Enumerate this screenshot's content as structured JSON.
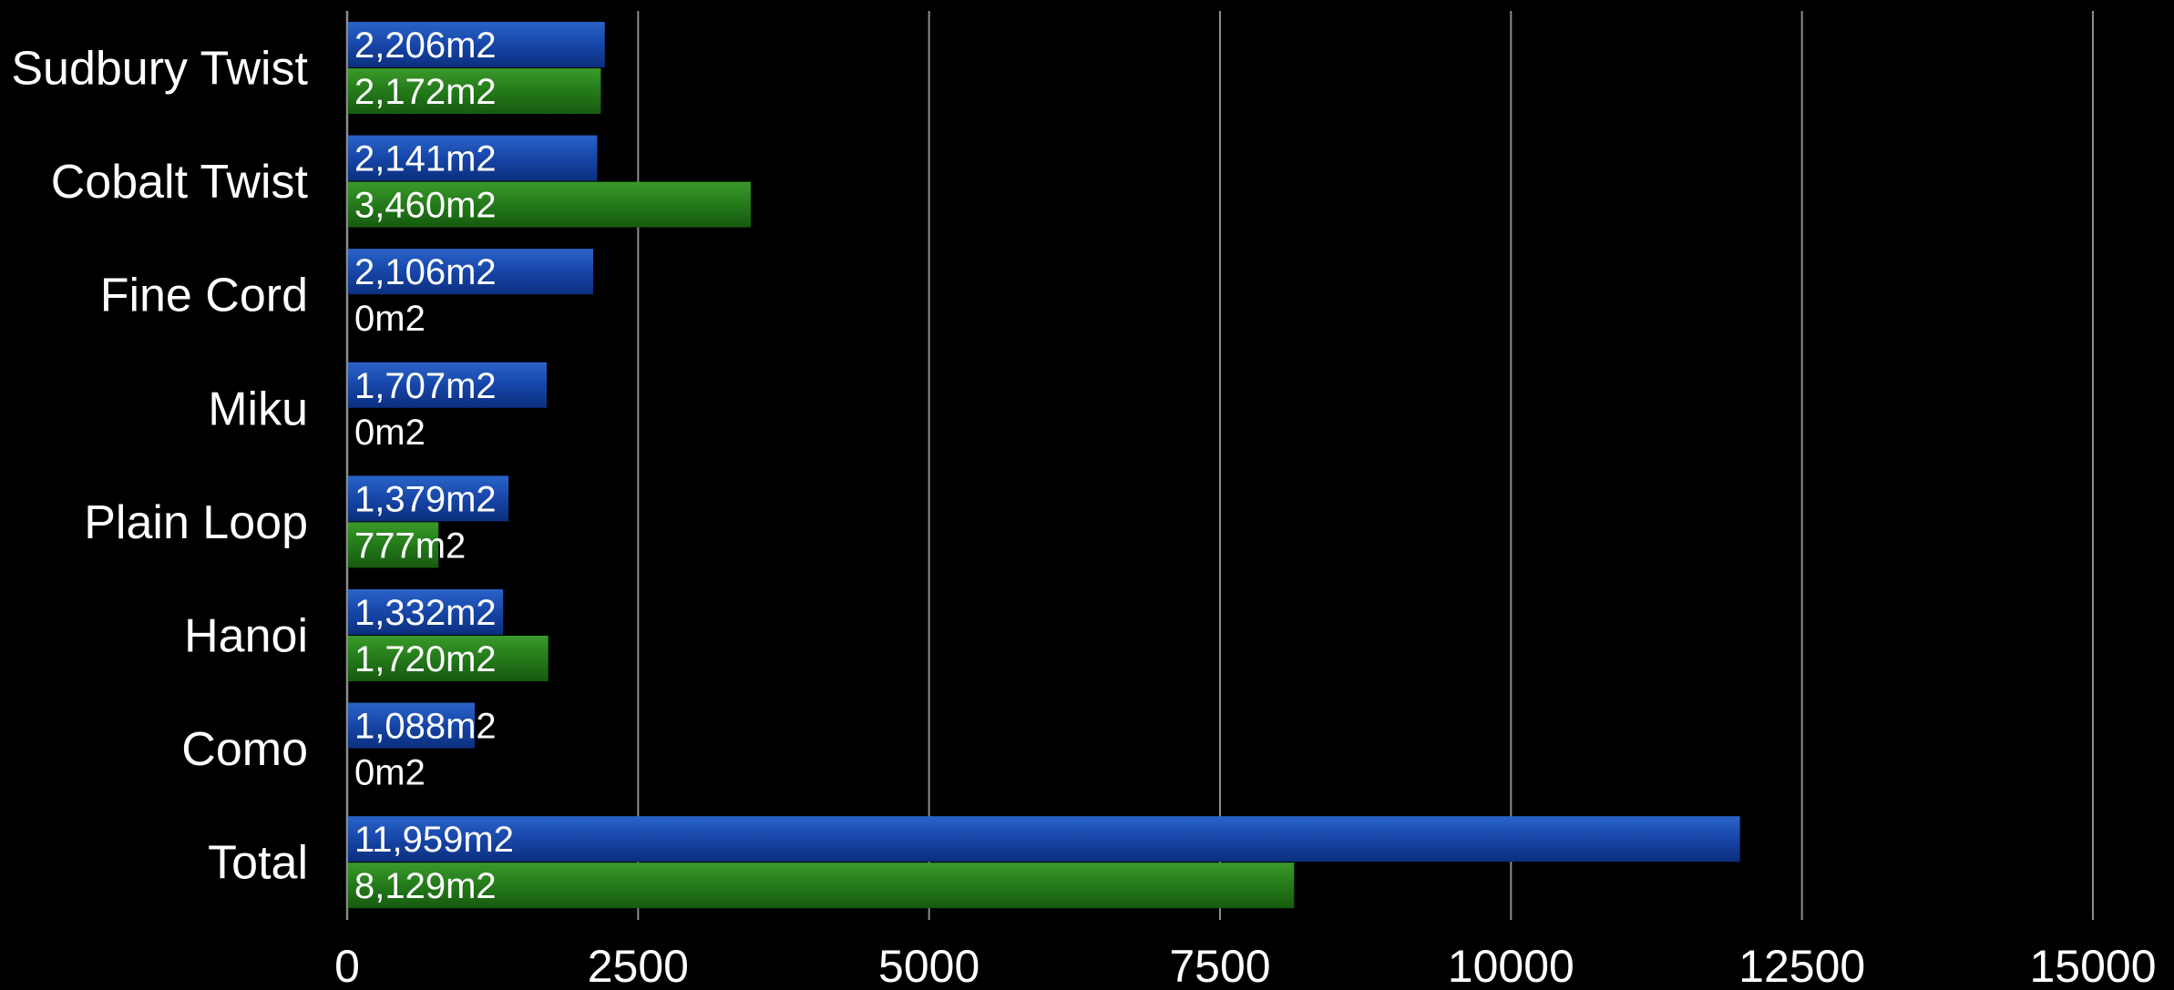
{
  "chart_data": {
    "type": "bar",
    "orientation": "horizontal",
    "categories": [
      "Sudbury Twist",
      "Cobalt Twist",
      "Fine Cord",
      "Miku",
      "Plain Loop",
      "Hanoi",
      "Como",
      "Total"
    ],
    "series": [
      {
        "values": [
          2206,
          2141,
          2106,
          1707,
          1379,
          1332,
          1088,
          11959
        ],
        "labels": [
          "2,206m2",
          "2,141m2",
          "2,106m2",
          "1,707m2",
          "1,379m2",
          "1,332m2",
          "1,088m2",
          "11,959m2"
        ],
        "color": "#1746a8"
      },
      {
        "values": [
          2172,
          3460,
          0,
          0,
          777,
          1720,
          0,
          8129
        ],
        "labels": [
          "2,172m2",
          "3,460m2",
          "0m2",
          "0m2",
          "777m2",
          "1,720m2",
          "0m2",
          "8,129m2"
        ],
        "color": "#247a1a"
      }
    ],
    "xlim": [
      0,
      15000
    ],
    "xticks": [
      "0",
      "2500",
      "5000",
      "7500",
      "10000",
      "12500",
      "15000"
    ],
    "grid": true,
    "title": "",
    "xlabel": "",
    "ylabel": "",
    "colors": {
      "background": "#000000",
      "grid": "#8c8c8c",
      "text": "#ffffff"
    }
  }
}
